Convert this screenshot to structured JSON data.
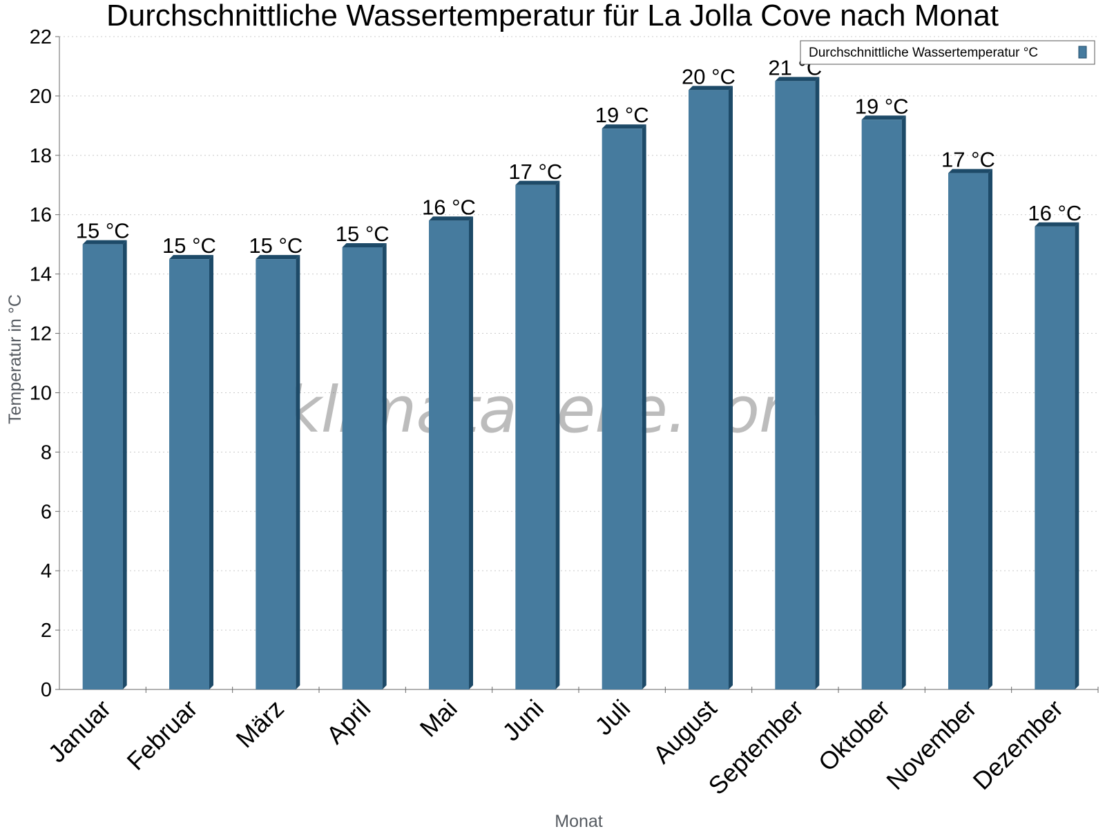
{
  "chart_data": {
    "type": "bar",
    "title": "Durchschnittliche Wassertemperatur für La Jolla Cove nach Monat",
    "xlabel": "Monat",
    "ylabel": "Temperatur in °C",
    "categories": [
      "Januar",
      "Februar",
      "März",
      "April",
      "Mai",
      "Juni",
      "Juli",
      "August",
      "September",
      "Oktober",
      "November",
      "Dezember"
    ],
    "series": [
      {
        "name": "Durchschnittliche Wassertemperatur °C",
        "values": [
          15.0,
          14.5,
          14.5,
          14.9,
          15.8,
          17.0,
          18.9,
          20.2,
          20.5,
          19.2,
          17.4,
          15.6
        ],
        "labels": [
          "15 °C",
          "15 °C",
          "15 °C",
          "15 °C",
          "16 °C",
          "17 °C",
          "19 °C",
          "20 °C",
          "21 °C",
          "19 °C",
          "17 °C",
          "16 °C"
        ]
      }
    ],
    "ylim": [
      0,
      22
    ],
    "yticks": [
      0,
      2,
      4,
      6,
      8,
      10,
      12,
      14,
      16,
      18,
      20,
      22
    ],
    "grid": true,
    "legend_position": "top-right",
    "bar_color": "#467b9e",
    "bar_side_color": "#1d4a68",
    "watermark": "klimatabelle.com"
  }
}
